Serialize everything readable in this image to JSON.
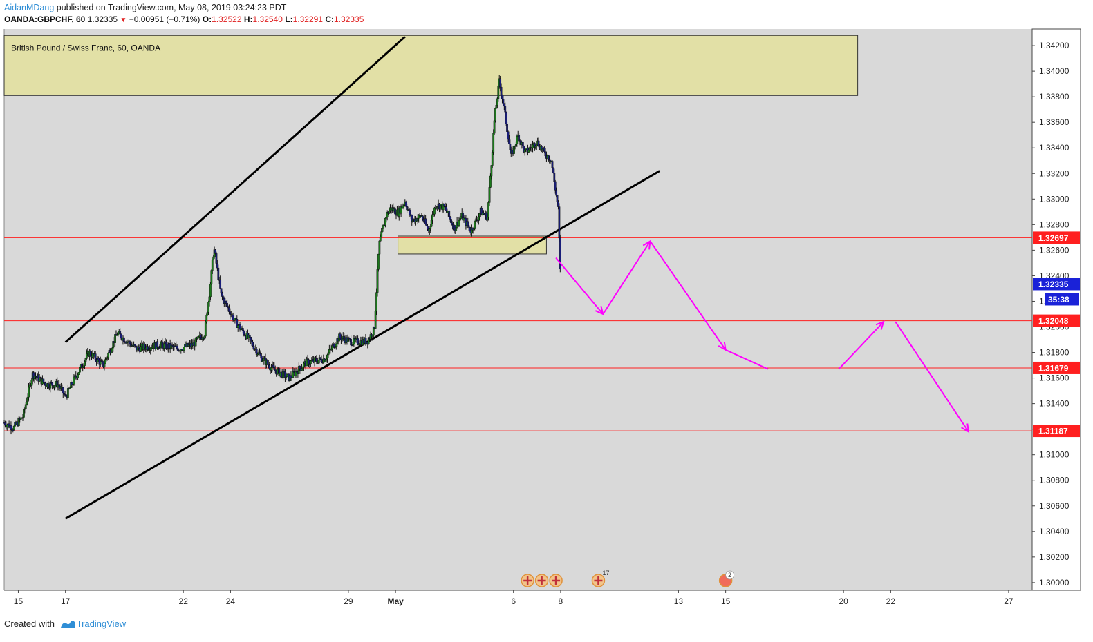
{
  "header": {
    "author": "AidanMDang",
    "published_text": "published on TradingView.com, May 08, 2019 03:24:23 PDT",
    "symbol": "OANDA:GBPCHF, 60",
    "last": "1.32335",
    "change": "−0.00951 (−0.71%)",
    "o_label": "O:",
    "o_value": "1.32522",
    "h_label": "H:",
    "h_value": "1.32540",
    "l_label": "L:",
    "l_value": "1.32291",
    "c_label": "C:",
    "c_value": "1.32335"
  },
  "legend_title": "British Pound / Swiss Franc, 60, OANDA",
  "countdown": "35:38",
  "footer": {
    "created_with": "Created with",
    "brand": "TradingView"
  },
  "colors": {
    "background": "#d9d9d9",
    "candle_up": "#1b7a1b",
    "candle_down": "#1a1e7a",
    "level_line": "#ff1f1f",
    "level_label_bg": "#ff1f1f",
    "current_price_bg": "#1a22d8",
    "zone_fill": "#e2e0a6",
    "projection": "#ff00ff",
    "trendline": "#000000"
  },
  "chart_data": {
    "type": "candlestick",
    "title": "British Pound / Swiss Franc, 60, OANDA",
    "y_axis": {
      "ticks": [
        "1.34200",
        "1.34000",
        "1.33800",
        "1.33600",
        "1.33400",
        "1.33200",
        "1.33000",
        "1.32800",
        "1.32600",
        "1.32400",
        "1.32200",
        "1.32000",
        "1.31800",
        "1.31600",
        "1.31400",
        "1.31200",
        "1.31000",
        "1.30800",
        "1.30600",
        "1.30400",
        "1.30200",
        "1.30000"
      ],
      "range": [
        1.2994,
        1.3433
      ]
    },
    "x_axis": {
      "ticks": [
        "15",
        "17",
        "22",
        "24",
        "29",
        "May",
        "6",
        "8",
        "13",
        "15",
        "20",
        "22",
        "27"
      ],
      "tick_days": [
        15,
        17,
        22,
        24,
        29,
        31,
        36,
        38,
        43,
        45,
        50,
        52,
        57
      ],
      "range_days": [
        14.4,
        58.0
      ]
    },
    "price_levels": [
      {
        "value": 1.32697,
        "label": "1.32697"
      },
      {
        "value": 1.32048,
        "label": "1.32048"
      },
      {
        "value": 1.31679,
        "label": "1.31679"
      },
      {
        "value": 1.31187,
        "label": "1.31187"
      }
    ],
    "current_price": {
      "value": 1.32335,
      "label": "1.32335"
    },
    "zones": [
      {
        "from_day": 14.4,
        "to_day": 50.6,
        "low": 1.3381,
        "high": 1.3428
      },
      {
        "from_day": 31.1,
        "to_day": 37.4,
        "low": 1.3257,
        "high": 1.3271
      }
    ],
    "trendlines": [
      {
        "day": [
          17.0,
          31.4
        ],
        "price": [
          1.3188,
          1.3427
        ]
      },
      {
        "day": [
          17.0,
          42.2
        ],
        "price": [
          1.305,
          1.3322
        ]
      }
    ],
    "projection_path": {
      "day": [
        37.8,
        39.8,
        41.8,
        45.0,
        46.8,
        49.8,
        51.7,
        52.2,
        55.3
      ],
      "price": [
        1.3254,
        1.321,
        1.3267,
        1.3182,
        1.3167,
        1.3167,
        1.3204,
        1.3204,
        1.3118
      ]
    },
    "event_icon_counts": [
      "17",
      "2"
    ],
    "candle_keypoints": {
      "day": [
        14.4,
        14.8,
        15.2,
        15.6,
        16.2,
        16.7,
        17.0,
        17.4,
        18.0,
        18.6,
        19.2,
        20.0,
        21.0,
        21.8,
        22.4,
        22.9,
        23.1,
        23.3,
        23.6,
        24.2,
        24.8,
        25.3,
        25.8,
        26.5,
        27.2,
        28.0,
        28.6,
        29.2,
        29.8,
        30.1,
        30.3,
        30.6,
        30.8,
        31.1,
        31.4,
        31.7,
        32.1,
        32.4,
        32.7,
        33.1,
        33.5,
        33.8,
        34.2,
        34.6,
        34.9,
        35.2,
        35.4,
        35.6,
        35.9,
        36.2,
        36.5,
        37.0,
        37.3,
        37.6,
        37.9,
        38.0
      ],
      "price": [
        1.3125,
        1.3121,
        1.313,
        1.3163,
        1.3155,
        1.3155,
        1.3145,
        1.316,
        1.318,
        1.317,
        1.3195,
        1.3183,
        1.3186,
        1.3183,
        1.3186,
        1.3195,
        1.3225,
        1.3262,
        1.3225,
        1.3204,
        1.319,
        1.3176,
        1.3167,
        1.316,
        1.3172,
        1.3175,
        1.3192,
        1.3188,
        1.3189,
        1.3198,
        1.3264,
        1.3287,
        1.3293,
        1.3289,
        1.3298,
        1.3283,
        1.3287,
        1.3275,
        1.3296,
        1.3293,
        1.3277,
        1.3287,
        1.3275,
        1.329,
        1.3286,
        1.3363,
        1.3392,
        1.3372,
        1.3333,
        1.335,
        1.3336,
        1.3345,
        1.3336,
        1.3331,
        1.3292,
        1.3234
      ]
    }
  }
}
